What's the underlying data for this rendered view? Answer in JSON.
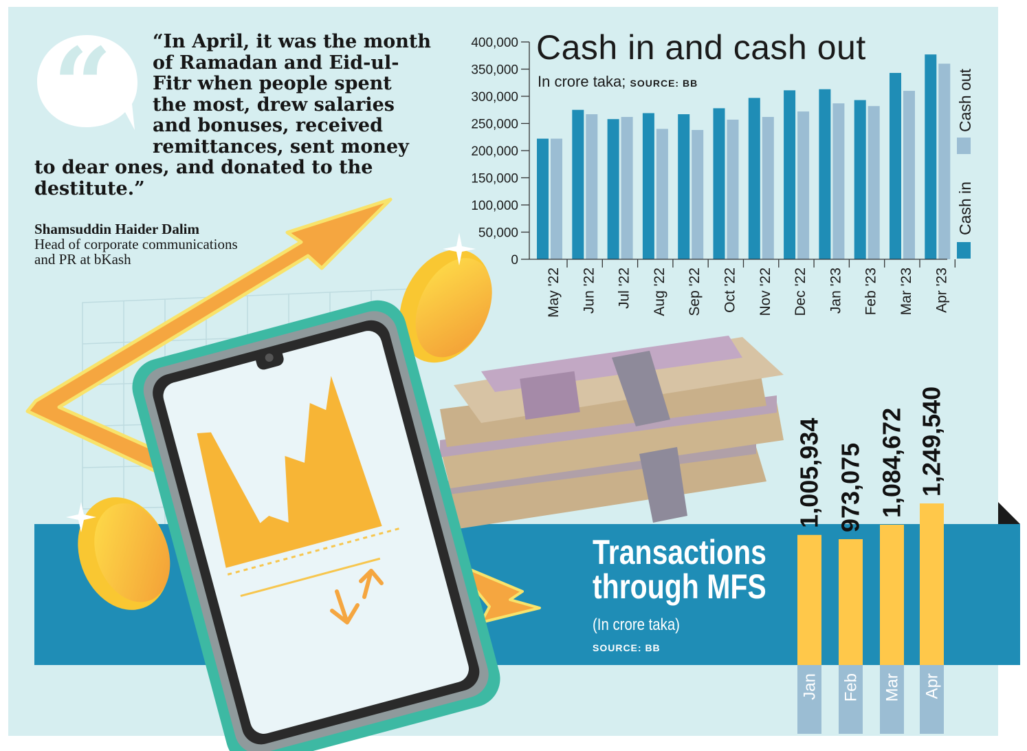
{
  "quote": {
    "lines": [
      "“In April, it was the month",
      "of Ramadan and Eid-ul-",
      "Fitr when people spent",
      "the most, drew salaries",
      "and bonuses, received",
      "remittances, sent money",
      "to dear ones, and donated to the",
      "destitute.”"
    ],
    "author": "Shamsuddin Haider Dalim",
    "role_line1": "Head of corporate communications",
    "role_line2": "and PR at bKash"
  },
  "colors": {
    "background": "#d6eef0",
    "cash_in": "#1f8db6",
    "cash_out": "#9bbdd3",
    "band": "#1f8db6",
    "mfs_bar": "#ffc84a",
    "mfs_label_bg": "#9bbdd3"
  },
  "chart_data": [
    {
      "type": "bar",
      "title": "Cash in and cash out",
      "subtitle": "In crore taka;",
      "source": "SOURCE: BB",
      "categories": [
        "May '22",
        "Jun '22",
        "Jul '22",
        "Aug '22",
        "Sep '22",
        "Oct '22",
        "Nov '22",
        "Dec '22",
        "Jan '23",
        "Feb '23",
        "Mar '23",
        "Apr '23"
      ],
      "series": [
        {
          "name": "Cash in",
          "values": [
            222000,
            275000,
            258000,
            269000,
            267000,
            278000,
            297000,
            311000,
            313000,
            293000,
            343000,
            377000
          ]
        },
        {
          "name": "Cash out",
          "values": [
            222000,
            267000,
            262000,
            240000,
            238000,
            257000,
            262000,
            272000,
            287000,
            282000,
            310000,
            360000
          ]
        }
      ],
      "yticks": [
        "400,000",
        "350,000",
        "300,000",
        "250,000",
        "200,000",
        "150,000",
        "100,000",
        "50,000",
        "0"
      ],
      "ylim": [
        0,
        400000
      ],
      "legend": "right, vertical",
      "grid": false
    },
    {
      "type": "bar",
      "title": "Transactions through MFS",
      "subtitle": "(In crore taka)",
      "source": "SOURCE: BB",
      "categories": [
        "Jan",
        "Feb",
        "Mar",
        "Apr"
      ],
      "values": [
        1005934,
        973075,
        1084672,
        1249540
      ],
      "value_labels": [
        "1,005,934",
        "973,075",
        "1,084,672",
        "1,249,540"
      ]
    }
  ]
}
